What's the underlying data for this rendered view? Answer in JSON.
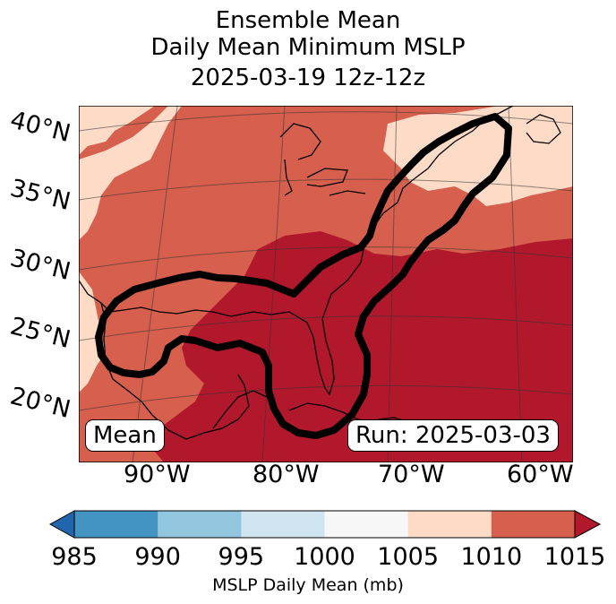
{
  "title": {
    "line1": "Ensemble Mean",
    "line2": "Daily Mean Minimum MSLP",
    "line3": "2025-03-19 12z-12z"
  },
  "map": {
    "lat_labels": [
      "40°N",
      "35°N",
      "30°N",
      "25°N",
      "20°N"
    ],
    "lon_labels": [
      "90°W",
      "80°W",
      "70°W",
      "60°W"
    ],
    "panel_label": "Mean",
    "run_label": "Run: 2025-03-03"
  },
  "colorbar": {
    "ticks": [
      "985",
      "990",
      "995",
      "1000",
      "1005",
      "1010",
      "1015"
    ],
    "colors": [
      "#4393c3",
      "#92c5de",
      "#d1e5f0",
      "#f7f7f7",
      "#fddbc7",
      "#d6604d",
      "#b2182b"
    ],
    "extend_low_color": "#2166ac",
    "extend_high_color": "#b2182b",
    "label": "MSLP Daily Mean (mb)"
  }
}
